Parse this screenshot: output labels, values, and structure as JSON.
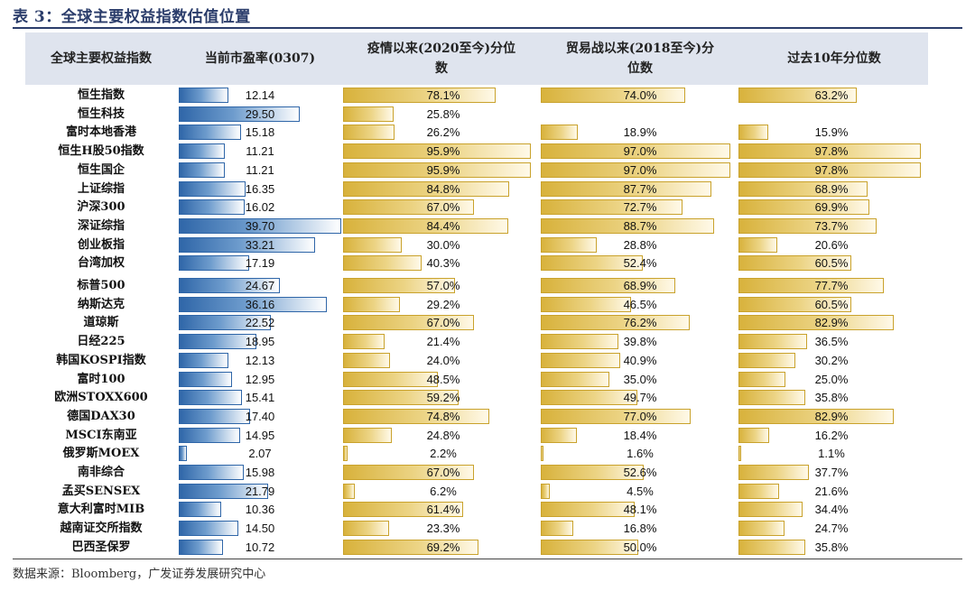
{
  "caption": "表 3：全球主要权益指数估值位置",
  "columns": {
    "index": "全球主要权益指数",
    "pe": "当前市盈率(0307)",
    "epidemic": [
      "疫情以来(2020至今)分位",
      "数"
    ],
    "tradewar": [
      "贸易战以来(2018至今)分",
      "位数"
    ],
    "tenyear": "过去10年分位数"
  },
  "pe_scale_max": 39.7,
  "rows": [
    {
      "name": "恒生指数",
      "pe": "12.14",
      "p1": "78.1%",
      "p2": "74.0%",
      "p3": "63.2%"
    },
    {
      "name": "恒生科技",
      "pe": "29.50",
      "p1": "25.8%",
      "p2": "",
      "p3": ""
    },
    {
      "name": "富时本地香港",
      "pe": "15.18",
      "p1": "26.2%",
      "p2": "18.9%",
      "p3": "15.9%"
    },
    {
      "name": "恒生H股50指数",
      "pe": "11.21",
      "p1": "95.9%",
      "p2": "97.0%",
      "p3": "97.8%"
    },
    {
      "name": "恒生国企",
      "pe": "11.21",
      "p1": "95.9%",
      "p2": "97.0%",
      "p3": "97.8%"
    },
    {
      "name": "上证综指",
      "pe": "16.35",
      "p1": "84.8%",
      "p2": "87.7%",
      "p3": "68.9%"
    },
    {
      "name": "沪深300",
      "pe": "16.02",
      "p1": "67.0%",
      "p2": "72.7%",
      "p3": "69.9%"
    },
    {
      "name": "深证综指",
      "pe": "39.70",
      "p1": "84.4%",
      "p2": "88.7%",
      "p3": "73.7%"
    },
    {
      "name": "创业板指",
      "pe": "33.21",
      "p1": "30.0%",
      "p2": "28.8%",
      "p3": "20.6%"
    },
    {
      "name": "台湾加权",
      "pe": "17.19",
      "p1": "40.3%",
      "p2": "52.4%",
      "p3": "60.5%"
    },
    {
      "name": "标普500",
      "pe": "24.67",
      "p1": "57.0%",
      "p2": "68.9%",
      "p3": "77.7%"
    },
    {
      "name": "纳斯达克",
      "pe": "36.16",
      "p1": "29.2%",
      "p2": "46.5%",
      "p3": "60.5%"
    },
    {
      "name": "道琼斯",
      "pe": "22.52",
      "p1": "67.0%",
      "p2": "76.2%",
      "p3": "82.9%"
    },
    {
      "name": "日经225",
      "pe": "18.95",
      "p1": "21.4%",
      "p2": "39.8%",
      "p3": "36.5%"
    },
    {
      "name": "韩国KOSPI指数",
      "pe": "12.13",
      "p1": "24.0%",
      "p2": "40.9%",
      "p3": "30.2%"
    },
    {
      "name": "富时100",
      "pe": "12.95",
      "p1": "48.5%",
      "p2": "35.0%",
      "p3": "25.0%"
    },
    {
      "name": "欧洲STOXX600",
      "pe": "15.41",
      "p1": "59.2%",
      "p2": "49.7%",
      "p3": "35.8%"
    },
    {
      "name": "德国DAX30",
      "pe": "17.40",
      "p1": "74.8%",
      "p2": "77.0%",
      "p3": "82.9%"
    },
    {
      "name": "MSCI东南亚",
      "pe": "14.95",
      "p1": "24.8%",
      "p2": "18.4%",
      "p3": "16.2%"
    },
    {
      "name": "俄罗斯MOEX",
      "pe": "2.07",
      "p1": "2.2%",
      "p2": "1.6%",
      "p3": "1.1%"
    },
    {
      "name": "南非综合",
      "pe": "15.98",
      "p1": "67.0%",
      "p2": "52.6%",
      "p3": "37.7%"
    },
    {
      "name": "孟买SENSEX",
      "pe": "21.79",
      "p1": "6.2%",
      "p2": "4.5%",
      "p3": "21.6%"
    },
    {
      "name": "意大利富时MIB",
      "pe": "10.36",
      "p1": "61.4%",
      "p2": "48.1%",
      "p3": "34.4%"
    },
    {
      "name": "越南证交所指数",
      "pe": "14.50",
      "p1": "23.3%",
      "p2": "16.8%",
      "p3": "24.7%"
    },
    {
      "name": "巴西圣保罗",
      "pe": "10.72",
      "p1": "69.2%",
      "p2": "50.0%",
      "p3": "35.8%"
    }
  ],
  "source": "数据来源：Bloomberg，广发证券发展研究中心"
}
